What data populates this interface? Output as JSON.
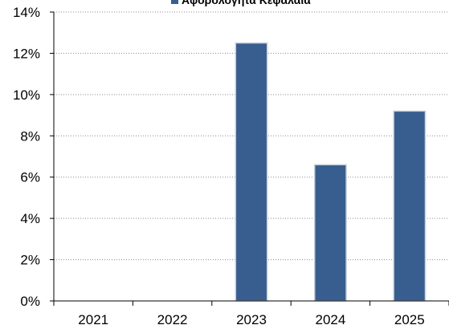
{
  "chart_data": {
    "type": "bar",
    "title": "",
    "legend": {
      "entries": [
        "Αφορολόγητα Κεφάλαια"
      ],
      "placement": "top-center"
    },
    "categories": [
      "2021",
      "2022",
      "2023",
      "2024",
      "2025"
    ],
    "series": [
      {
        "name": "Αφορολόγητα Κεφάλαια",
        "values": [
          0,
          0,
          12.5,
          6.6,
          9.2
        ],
        "color": "#375E8E"
      }
    ],
    "y_ticks": [
      "0%",
      "2%",
      "4%",
      "6%",
      "8%",
      "10%",
      "12%",
      "14%"
    ],
    "ylim": [
      0,
      14
    ],
    "ylabel": "",
    "xlabel": "",
    "grid": "horizontal-dotted"
  }
}
